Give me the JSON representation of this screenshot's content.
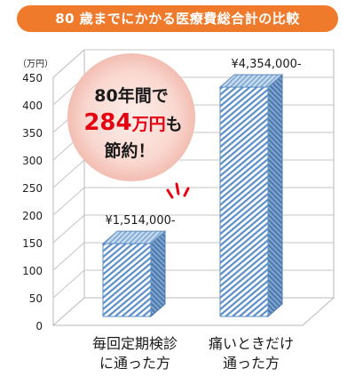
{
  "header": {
    "title": "80 歳までにかかる医療費総合計の比較"
  },
  "colors": {
    "title_bg": "#f07a2c",
    "bar_front_stripe": "#5a8ec6",
    "bar_side": "#5f8bbd",
    "bar_top": "#8db2da",
    "callout_bg": "#f5c9c1",
    "highlight_red": "#e50012"
  },
  "callout": {
    "line1": "80年間で",
    "amount": "284",
    "unit_suffix": "万円",
    "particle": "も",
    "line3": "節約！"
  },
  "chart_data": {
    "type": "bar",
    "yunit": "（万円）",
    "ylim": [
      0,
      450
    ],
    "yticks": [
      "0",
      "50",
      "100",
      "150",
      "200",
      "250",
      "300",
      "350",
      "400",
      "450"
    ],
    "categories": [
      [
        "毎回定期検診",
        "に通った方"
      ],
      [
        "痛いときだけ",
        "通った方"
      ]
    ],
    "values": [
      151.4,
      435.4
    ],
    "value_labels": [
      "¥1,514,000-",
      "¥4,354,000-"
    ],
    "grid": true
  }
}
